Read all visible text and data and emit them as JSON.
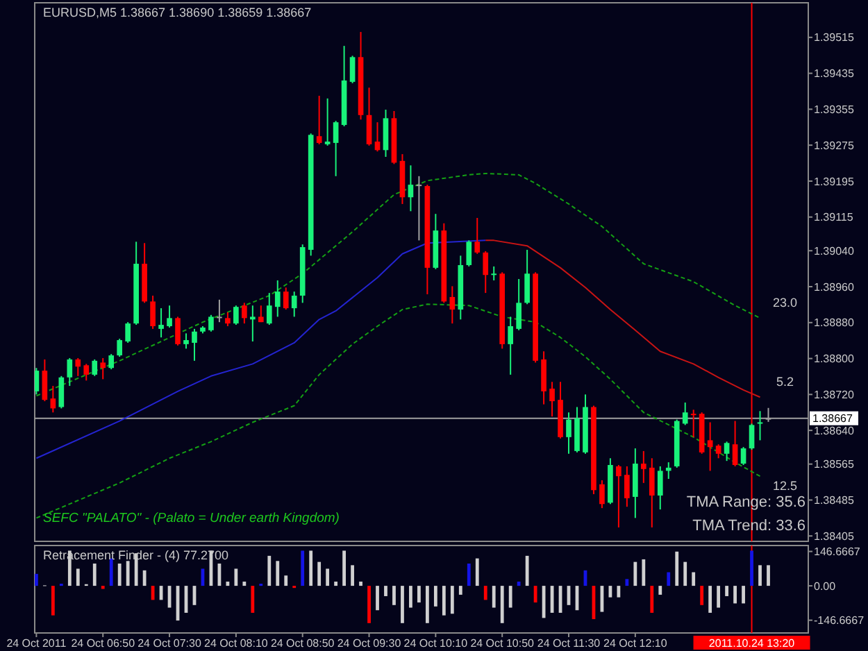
{
  "chart_data": [
    {
      "type": "candlestick",
      "title": "EURUSD,M5  1.38667 1.38690 1.38659 1.38667",
      "x": [
        "2011-10-24T06:10",
        "2011-10-24T06:15",
        "2011-10-24T06:20",
        "2011-10-24T06:25",
        "2011-10-24T06:30",
        "2011-10-24T06:35",
        "2011-10-24T06:40",
        "2011-10-24T06:45",
        "2011-10-24T06:50",
        "2011-10-24T06:55",
        "2011-10-24T07:00",
        "2011-10-24T07:05",
        "2011-10-24T07:10",
        "2011-10-24T07:15",
        "2011-10-24T07:20",
        "2011-10-24T07:25",
        "2011-10-24T07:30",
        "2011-10-24T07:35",
        "2011-10-24T07:40",
        "2011-10-24T07:45",
        "2011-10-24T07:50",
        "2011-10-24T07:55",
        "2011-10-24T08:00",
        "2011-10-24T08:05",
        "2011-10-24T08:10",
        "2011-10-24T08:15",
        "2011-10-24T08:20",
        "2011-10-24T08:25",
        "2011-10-24T08:30",
        "2011-10-24T08:35",
        "2011-10-24T08:40",
        "2011-10-24T08:45",
        "2011-10-24T08:50",
        "2011-10-24T08:55",
        "2011-10-24T09:00",
        "2011-10-24T09:05",
        "2011-10-24T09:10",
        "2011-10-24T09:15",
        "2011-10-24T09:20",
        "2011-10-24T09:25",
        "2011-10-24T09:30",
        "2011-10-24T09:35",
        "2011-10-24T09:40",
        "2011-10-24T09:45",
        "2011-10-24T09:50",
        "2011-10-24T09:55",
        "2011-10-24T10:00",
        "2011-10-24T10:05",
        "2011-10-24T10:10",
        "2011-10-24T10:15",
        "2011-10-24T10:20",
        "2011-10-24T10:25",
        "2011-10-24T10:30",
        "2011-10-24T10:35",
        "2011-10-24T10:40",
        "2011-10-24T10:45",
        "2011-10-24T10:50",
        "2011-10-24T10:55",
        "2011-10-24T11:00",
        "2011-10-24T11:05",
        "2011-10-24T11:10",
        "2011-10-24T11:15",
        "2011-10-24T11:20",
        "2011-10-24T11:25",
        "2011-10-24T11:30",
        "2011-10-24T11:35",
        "2011-10-24T11:40",
        "2011-10-24T11:45",
        "2011-10-24T11:50",
        "2011-10-24T11:55",
        "2011-10-24T12:00",
        "2011-10-24T12:05",
        "2011-10-24T12:10",
        "2011-10-24T12:15",
        "2011-10-24T12:20",
        "2011-10-24T12:25",
        "2011-10-24T12:30",
        "2011-10-24T12:35",
        "2011-10-24T12:40",
        "2011-10-24T12:45",
        "2011-10-24T12:50",
        "2011-10-24T12:55",
        "2011-10-24T13:00",
        "2011-10-24T13:05",
        "2011-10-24T13:10",
        "2011-10-24T13:15",
        "2011-10-24T13:20",
        "2011-10-24T13:25",
        "2011-10-24T13:30"
      ],
      "ohlc": [
        [
          1.38727,
          1.38779,
          1.3872,
          1.38773
        ],
        [
          1.38773,
          1.38798,
          1.38705,
          1.38708
        ],
        [
          1.38711,
          1.38739,
          1.3868,
          1.38689
        ],
        [
          1.38692,
          1.38761,
          1.38689,
          1.38758
        ],
        [
          1.38758,
          1.38801,
          1.38739,
          1.38798
        ],
        [
          1.38798,
          1.38801,
          1.38761,
          1.38782
        ],
        [
          1.38785,
          1.38788,
          1.38751,
          1.38764
        ],
        [
          1.38764,
          1.38798,
          1.38761,
          1.38795
        ],
        [
          1.38791,
          1.38801,
          1.38754,
          1.38779
        ],
        [
          1.38779,
          1.3881,
          1.38776,
          1.38807
        ],
        [
          1.38807,
          1.38844,
          1.38804,
          1.38841
        ],
        [
          1.38838,
          1.38881,
          1.38835,
          1.38878
        ],
        [
          1.38878,
          1.3906,
          1.38875,
          1.39011
        ],
        [
          1.39011,
          1.39057,
          1.38924,
          1.38927
        ],
        [
          1.38927,
          1.3894,
          1.38866,
          1.38872
        ],
        [
          1.38866,
          1.38912,
          1.38847,
          1.38875
        ],
        [
          1.38872,
          1.38918,
          1.38869,
          1.3889
        ],
        [
          1.3889,
          1.38893,
          1.38829,
          1.38832
        ],
        [
          1.38832,
          1.38856,
          1.38822,
          1.38841
        ],
        [
          1.38835,
          1.38866,
          1.38795,
          1.3886
        ],
        [
          1.3886,
          1.38872,
          1.38856,
          1.38869
        ],
        [
          1.38863,
          1.38897,
          1.3886,
          1.38893
        ],
        [
          1.38893,
          1.38931,
          1.38881,
          1.38893
        ],
        [
          1.3889,
          1.38903,
          1.38872,
          1.38878
        ],
        [
          1.38878,
          1.38918,
          1.38875,
          1.38915
        ],
        [
          1.38918,
          1.38924,
          1.38878,
          1.3889
        ],
        [
          1.38887,
          1.38918,
          1.38838,
          1.38893
        ],
        [
          1.38893,
          1.38918,
          1.38881,
          1.38881
        ],
        [
          1.38878,
          1.38946,
          1.38875,
          1.38918
        ],
        [
          1.38915,
          1.38974,
          1.38893,
          1.38949
        ],
        [
          1.38949,
          1.38958,
          1.38909,
          1.38912
        ],
        [
          1.38912,
          1.38949,
          1.38893,
          1.3894
        ],
        [
          1.3894,
          1.39054,
          1.38924,
          1.39048
        ],
        [
          1.39042,
          1.39301,
          1.39029,
          1.39298
        ],
        [
          1.39295,
          1.39385,
          1.39277,
          1.3928
        ],
        [
          1.39277,
          1.39379,
          1.39274,
          1.39283
        ],
        [
          1.3928,
          1.39329,
          1.39206,
          1.39326
        ],
        [
          1.3932,
          1.39496,
          1.39317,
          1.39419
        ],
        [
          1.39416,
          1.39474,
          1.39413,
          1.39471
        ],
        [
          1.39471,
          1.39527,
          1.39332,
          1.39342
        ],
        [
          1.39342,
          1.39403,
          1.39274,
          1.39277
        ],
        [
          1.39283,
          1.39326,
          1.39261,
          1.39264
        ],
        [
          1.39264,
          1.39354,
          1.39249,
          1.39335
        ],
        [
          1.39335,
          1.39351,
          1.39233,
          1.39236
        ],
        [
          1.3924,
          1.39255,
          1.39144,
          1.39159
        ],
        [
          1.39159,
          1.3923,
          1.39128,
          1.39187
        ],
        [
          1.39187,
          1.39206,
          1.39063,
          1.39187
        ],
        [
          1.39184,
          1.39187,
          1.38943,
          1.39002
        ],
        [
          1.39002,
          1.39122,
          1.38999,
          1.39085
        ],
        [
          1.39085,
          1.39101,
          1.38924,
          1.38927
        ],
        [
          1.38937,
          1.38961,
          1.38878,
          1.38909
        ],
        [
          1.38909,
          1.39029,
          1.38887,
          1.39008
        ],
        [
          1.39008,
          1.39063,
          1.39005,
          1.3906
        ],
        [
          1.3906,
          1.39113,
          1.39033,
          1.39036
        ],
        [
          1.39036,
          1.39039,
          1.38946,
          1.38986
        ],
        [
          1.38986,
          1.39005,
          1.38974,
          1.38989
        ],
        [
          1.38989,
          1.38992,
          1.38822,
          1.38832
        ],
        [
          1.38832,
          1.38893,
          1.38764,
          1.38872
        ],
        [
          1.38866,
          1.38977,
          1.38863,
          1.38924
        ],
        [
          1.38924,
          1.39042,
          1.38921,
          1.38989
        ],
        [
          1.38989,
          1.38992,
          1.38791,
          1.38795
        ],
        [
          1.38798,
          1.38816,
          1.38698,
          1.38727
        ],
        [
          1.38733,
          1.38748,
          1.38671,
          1.38705
        ],
        [
          1.38708,
          1.38748,
          1.38622,
          1.38625
        ],
        [
          1.38625,
          1.3868,
          1.38588,
          1.38664
        ],
        [
          1.38594,
          1.38692,
          1.38591,
          1.38667
        ],
        [
          1.38591,
          1.3872,
          1.38588,
          1.38692
        ],
        [
          1.38692,
          1.38695,
          1.38498,
          1.38507
        ],
        [
          1.3852,
          1.38529,
          1.38467,
          1.38476
        ],
        [
          1.38479,
          1.38578,
          1.38476,
          1.38563
        ],
        [
          1.3856,
          1.38563,
          1.38424,
          1.38538
        ],
        [
          1.38541,
          1.3856,
          1.3847,
          1.38489
        ],
        [
          1.38492,
          1.386,
          1.38445,
          1.38566
        ],
        [
          1.38566,
          1.38594,
          1.38523,
          1.38554
        ],
        [
          1.38557,
          1.38578,
          1.38424,
          1.38495
        ],
        [
          1.38495,
          1.3856,
          1.38464,
          1.3855
        ],
        [
          1.3855,
          1.38569,
          1.38532,
          1.38557
        ],
        [
          1.3856,
          1.38664,
          1.38557,
          1.38661
        ],
        [
          1.38655,
          1.38702,
          1.38652,
          1.3868
        ],
        [
          1.38677,
          1.38686,
          1.38625,
          1.38674
        ],
        [
          1.38677,
          1.3868,
          1.38588,
          1.38591
        ],
        [
          1.38618,
          1.38658,
          1.3855,
          1.38603
        ],
        [
          1.38606,
          1.38609,
          1.38578,
          1.38588
        ],
        [
          1.38588,
          1.38615,
          1.38572,
          1.38612
        ],
        [
          1.38609,
          1.38661,
          1.3856,
          1.38563
        ],
        [
          1.38566,
          1.38603,
          1.38563,
          1.386
        ],
        [
          1.386,
          1.38655,
          1.38597,
          1.38652
        ],
        [
          1.38655,
          1.38683,
          1.38618,
          1.38658
        ],
        [
          1.38667,
          1.3869,
          1.38659,
          1.38667
        ]
      ],
      "colors": [
        "#19f27a",
        "#ff0000",
        "#ff0000",
        "#19f27a",
        "#19f27a",
        "#ff0000",
        "#ff0000",
        "#19f27a",
        "#ff0000",
        "#19f27a",
        "#19f27a",
        "#19f27a",
        "#19f27a",
        "#ff0000",
        "#ff0000",
        "#19f27a",
        "#19f27a",
        "#ff0000",
        "#19f27a",
        "#19f27a",
        "#19f27a",
        "#19f27a",
        "#a0a0a0",
        "#ff0000",
        "#19f27a",
        "#ff0000",
        "#19f27a",
        "#ff0000",
        "#19f27a",
        "#19f27a",
        "#ff0000",
        "#19f27a",
        "#19f27a",
        "#19f27a",
        "#ff0000",
        "#19f27a",
        "#19f27a",
        "#19f27a",
        "#19f27a",
        "#ff0000",
        "#ff0000",
        "#ff0000",
        "#19f27a",
        "#ff0000",
        "#ff0000",
        "#19f27a",
        "#a0a0a0",
        "#ff0000",
        "#19f27a",
        "#ff0000",
        "#ff0000",
        "#19f27a",
        "#19f27a",
        "#ff0000",
        "#ff0000",
        "#19f27a",
        "#ff0000",
        "#19f27a",
        "#19f27a",
        "#19f27a",
        "#ff0000",
        "#ff0000",
        "#ff0000",
        "#ff0000",
        "#19f27a",
        "#19f27a",
        "#19f27a",
        "#ff0000",
        "#ff0000",
        "#19f27a",
        "#ff0000",
        "#ff0000",
        "#19f27a",
        "#ff0000",
        "#ff0000",
        "#19f27a",
        "#19f27a",
        "#19f27a",
        "#19f27a",
        "#ff0000",
        "#ff0000",
        "#ff0000",
        "#ff0000",
        "#19f27a",
        "#ff0000",
        "#19f27a",
        "#19f27a",
        "#19f27a",
        "#a0a0a0"
      ],
      "series": [
        {
          "type": "line",
          "color": "#2424d0",
          "line_style": "solid",
          "x": [
            "2011-10-24T06:10",
            "2011-10-24T07:00",
            "2011-10-24T07:35",
            "2011-10-24T07:55",
            "2011-10-24T08:20",
            "2011-10-24T08:45",
            "2011-10-24T09:00",
            "2011-10-24T09:10",
            "2011-10-24T09:35",
            "2011-10-24T09:50",
            "2011-10-24T10:05",
            "2011-10-24T10:40"
          ],
          "values": [
            1.38578,
            1.38661,
            1.38727,
            1.38761,
            1.38788,
            1.38835,
            1.38887,
            1.38906,
            1.3898,
            1.39033,
            1.39057,
            1.39063
          ]
        },
        {
          "type": "line",
          "name": "5.2",
          "color": "#c81414",
          "line_style": "solid",
          "x": [
            "2011-10-24T10:40",
            "2011-10-24T10:45",
            "2011-10-24T11:05",
            "2011-10-24T11:25",
            "2011-10-24T11:40",
            "2011-10-24T11:55",
            "2011-10-24T12:10",
            "2011-10-24T12:25",
            "2011-10-24T12:45",
            "2011-10-24T13:00",
            "2011-10-24T13:15",
            "2011-10-24T13:25"
          ],
          "values": [
            1.39063,
            1.39063,
            1.39051,
            1.39002,
            1.38958,
            1.38909,
            1.38863,
            1.38816,
            1.38788,
            1.38758,
            1.3873,
            1.38714
          ]
        },
        {
          "type": "line",
          "name": "23.0",
          "color": "#14a014",
          "line_style": "dashed",
          "x": [
            "2011-10-24T06:10",
            "2011-10-24T07:00",
            "2011-10-24T07:50",
            "2011-10-24T08:30",
            "2011-10-24T08:50",
            "2011-10-24T09:20",
            "2011-10-24T09:45",
            "2011-10-24T10:05",
            "2011-10-24T10:30",
            "2011-10-24T10:40",
            "2011-10-24T11:00",
            "2011-10-24T11:10",
            "2011-10-24T11:30",
            "2011-10-24T11:50",
            "2011-10-24T12:15",
            "2011-10-24T12:45",
            "2011-10-24T13:10",
            "2011-10-24T13:25"
          ],
          "values": [
            1.38717,
            1.38795,
            1.38881,
            1.3894,
            1.38989,
            1.39082,
            1.39165,
            1.39196,
            1.39209,
            1.39212,
            1.39209,
            1.3919,
            1.39144,
            1.39094,
            1.39011,
            1.38971,
            1.38918,
            1.3889
          ]
        },
        {
          "type": "line",
          "name": "12.5",
          "color": "#14a014",
          "line_style": "dashed",
          "x": [
            "2011-10-24T06:10",
            "2011-10-24T07:00",
            "2011-10-24T07:30",
            "2011-10-24T07:55",
            "2011-10-24T08:20",
            "2011-10-24T08:45",
            "2011-10-24T09:00",
            "2011-10-24T09:20",
            "2011-10-24T09:35",
            "2011-10-24T09:50",
            "2011-10-24T10:05",
            "2011-10-24T10:30",
            "2011-10-24T10:50",
            "2011-10-24T11:10",
            "2011-10-24T11:25",
            "2011-10-24T11:40",
            "2011-10-24T11:55",
            "2011-10-24T12:15",
            "2011-10-24T12:45",
            "2011-10-24T13:10",
            "2011-10-24T13:25"
          ],
          "values": [
            1.38445,
            1.38523,
            1.38578,
            1.38615,
            1.38658,
            1.38695,
            1.38764,
            1.38832,
            1.38872,
            1.38909,
            1.38921,
            1.38918,
            1.38893,
            1.38881,
            1.38847,
            1.38804,
            1.38754,
            1.3868,
            1.38625,
            1.38569,
            1.38538
          ]
        }
      ],
      "xlim": [
        "2011-10-24T06:09",
        "2011-10-24T13:54"
      ],
      "ylim": [
        1.38393,
        1.39592
      ],
      "yticks": [
        1.39515,
        1.39435,
        1.39355,
        1.39275,
        1.39195,
        1.39115,
        {
          "value": 1.3904,
          "label": "1.39040"
        },
        {
          "value": 1.3896,
          "label": "1.38960"
        },
        {
          "value": 1.3888,
          "label": "1.38880"
        },
        {
          "value": 1.388,
          "label": "1.38800"
        },
        {
          "value": 1.3872,
          "label": "1.38720"
        },
        {
          "value": 1.3864,
          "label": "1.38640"
        },
        1.38565,
        1.38485,
        1.38405
      ],
      "tick_labels": "y",
      "ref_lines": [
        {
          "axis": "y",
          "value": 1.38667,
          "label": "1.38667",
          "color": "#a0a0a0"
        },
        {
          "axis": "x",
          "value": "2011-10-24T13:20",
          "color": "#ff0000"
        }
      ],
      "annotations": [
        "SEFC \"PALATO\" - (Palato = Under earth Kingdom)",
        "TMA Range: 35.6",
        "TMA Trend: 33.6"
      ]
    },
    {
      "type": "bar",
      "title": "Retracement Finder - (4) 77.2700",
      "x": [
        "2011-10-24T06:10",
        "2011-10-24T06:15",
        "2011-10-24T06:20",
        "2011-10-24T06:25",
        "2011-10-24T06:30",
        "2011-10-24T06:35",
        "2011-10-24T06:40",
        "2011-10-24T06:45",
        "2011-10-24T06:50",
        "2011-10-24T06:55",
        "2011-10-24T07:00",
        "2011-10-24T07:05",
        "2011-10-24T07:10",
        "2011-10-24T07:15",
        "2011-10-24T07:20",
        "2011-10-24T07:25",
        "2011-10-24T07:30",
        "2011-10-24T07:35",
        "2011-10-24T07:40",
        "2011-10-24T07:45",
        "2011-10-24T07:50",
        "2011-10-24T07:55",
        "2011-10-24T08:00",
        "2011-10-24T08:05",
        "2011-10-24T08:10",
        "2011-10-24T08:15",
        "2011-10-24T08:20",
        "2011-10-24T08:25",
        "2011-10-24T08:30",
        "2011-10-24T08:35",
        "2011-10-24T08:40",
        "2011-10-24T08:45",
        "2011-10-24T08:50",
        "2011-10-24T08:55",
        "2011-10-24T09:00",
        "2011-10-24T09:05",
        "2011-10-24T09:10",
        "2011-10-24T09:15",
        "2011-10-24T09:20",
        "2011-10-24T09:25",
        "2011-10-24T09:30",
        "2011-10-24T09:35",
        "2011-10-24T09:40",
        "2011-10-24T09:45",
        "2011-10-24T09:50",
        "2011-10-24T09:55",
        "2011-10-24T10:00",
        "2011-10-24T10:05",
        "2011-10-24T10:10",
        "2011-10-24T10:15",
        "2011-10-24T10:20",
        "2011-10-24T10:25",
        "2011-10-24T10:30",
        "2011-10-24T10:35",
        "2011-10-24T10:40",
        "2011-10-24T10:45",
        "2011-10-24T10:50",
        "2011-10-24T10:55",
        "2011-10-24T11:00",
        "2011-10-24T11:05",
        "2011-10-24T11:10",
        "2011-10-24T11:15",
        "2011-10-24T11:20",
        "2011-10-24T11:25",
        "2011-10-24T11:30",
        "2011-10-24T11:35",
        "2011-10-24T11:40",
        "2011-10-24T11:45",
        "2011-10-24T11:50",
        "2011-10-24T11:55",
        "2011-10-24T12:00",
        "2011-10-24T12:05",
        "2011-10-24T12:10",
        "2011-10-24T12:15",
        "2011-10-24T12:20",
        "2011-10-24T12:25",
        "2011-10-24T12:30",
        "2011-10-24T12:35",
        "2011-10-24T12:40",
        "2011-10-24T12:45",
        "2011-10-24T12:50",
        "2011-10-24T12:55",
        "2011-10-24T13:00",
        "2011-10-24T13:05",
        "2011-10-24T13:10",
        "2011-10-24T13:15",
        "2011-10-24T13:20",
        "2011-10-24T13:25",
        "2011-10-24T13:30"
      ],
      "values": [
        51,
        2,
        -126,
        9,
        150,
        73,
        7,
        95,
        -13,
        117,
        95,
        106,
        139,
        66,
        -60,
        -60,
        -93,
        -148,
        -115,
        -82,
        73,
        150,
        95,
        18,
        73,
        18,
        -115,
        9,
        128,
        106,
        44,
        -9,
        150,
        150,
        102,
        73,
        18,
        150,
        88,
        18,
        -159,
        -104,
        -44,
        -82,
        -159,
        -93,
        -71,
        -159,
        -88,
        -126,
        -119,
        -38,
        95,
        117,
        -60,
        -93,
        -159,
        -93,
        18,
        128,
        -71,
        -137,
        -115,
        -115,
        -82,
        -104,
        66,
        -142,
        -111,
        -49,
        -49,
        29,
        102,
        113,
        -115,
        -38,
        58,
        146,
        102,
        58,
        -82,
        -115,
        -93,
        -44,
        -75,
        -75,
        150,
        88,
        88
      ],
      "colors": [
        "#1414e6",
        "#d0d0d0",
        "#ff0000",
        "#1414e6",
        "#d0d0d0",
        "#d0d0d0",
        "#d0d0d0",
        "#d0d0d0",
        "#ff0000",
        "#1414e6",
        "#d0d0d0",
        "#d0d0d0",
        "#d0d0d0",
        "#d0d0d0",
        "#ff0000",
        "#d0d0d0",
        "#d0d0d0",
        "#d0d0d0",
        "#d0d0d0",
        "#d0d0d0",
        "#1414e6",
        "#d0d0d0",
        "#d0d0d0",
        "#d0d0d0",
        "#d0d0d0",
        "#d0d0d0",
        "#ff0000",
        "#1414e6",
        "#d0d0d0",
        "#d0d0d0",
        "#d0d0d0",
        "#ff0000",
        "#1414e6",
        "#d0d0d0",
        "#d0d0d0",
        "#d0d0d0",
        "#d0d0d0",
        "#d0d0d0",
        "#d0d0d0",
        "#d0d0d0",
        "#ff0000",
        "#d0d0d0",
        "#d0d0d0",
        "#d0d0d0",
        "#d0d0d0",
        "#d0d0d0",
        "#d0d0d0",
        "#d0d0d0",
        "#d0d0d0",
        "#d0d0d0",
        "#d0d0d0",
        "#d0d0d0",
        "#1414e6",
        "#d0d0d0",
        "#ff0000",
        "#d0d0d0",
        "#d0d0d0",
        "#d0d0d0",
        "#1414e6",
        "#d0d0d0",
        "#ff0000",
        "#d0d0d0",
        "#d0d0d0",
        "#d0d0d0",
        "#d0d0d0",
        "#d0d0d0",
        "#1414e6",
        "#ff0000",
        "#d0d0d0",
        "#d0d0d0",
        "#d0d0d0",
        "#1414e6",
        "#d0d0d0",
        "#d0d0d0",
        "#ff0000",
        "#d0d0d0",
        "#1414e6",
        "#d0d0d0",
        "#d0d0d0",
        "#d0d0d0",
        "#ff0000",
        "#d0d0d0",
        "#d0d0d0",
        "#d0d0d0",
        "#d0d0d0",
        "#d0d0d0",
        "#1414e6",
        "#d0d0d0",
        "#d0d0d0"
      ],
      "xlim": [
        "2011-10-24T06:09",
        "2011-10-24T13:54"
      ],
      "ylim": [
        -201,
        172
      ],
      "yticks": [
        {
          "value": 146.6667,
          "label": "146.6667"
        },
        {
          "value": 0,
          "label": "0.00"
        },
        {
          "value": -146.6667,
          "label": "-146.6667"
        }
      ],
      "xticks": [
        {
          "value": "2011-10-24T06:10",
          "label": "24 Oct 2011"
        },
        {
          "value": "2011-10-24T06:50",
          "label": "24 Oct 06:50"
        },
        {
          "value": "2011-10-24T07:30",
          "label": "24 Oct 07:30"
        },
        {
          "value": "2011-10-24T08:10",
          "label": "24 Oct 08:10"
        },
        {
          "value": "2011-10-24T08:50",
          "label": "24 Oct 08:50"
        },
        {
          "value": "2011-10-24T09:30",
          "label": "24 Oct 09:30"
        },
        {
          "value": "2011-10-24T10:10",
          "label": "24 Oct 10:10"
        },
        {
          "value": "2011-10-24T10:50",
          "label": "24 Oct 10:50"
        },
        {
          "value": "2011-10-24T11:30",
          "label": "24 Oct 11:30"
        },
        {
          "value": "2011-10-24T12:10",
          "label": "24 Oct 12:10"
        }
      ],
      "ref_lines": [
        {
          "axis": "x",
          "value": "2011-10-24T13:20",
          "label": "2011.10.24 13:20",
          "color": "#ff0000"
        }
      ]
    }
  ]
}
